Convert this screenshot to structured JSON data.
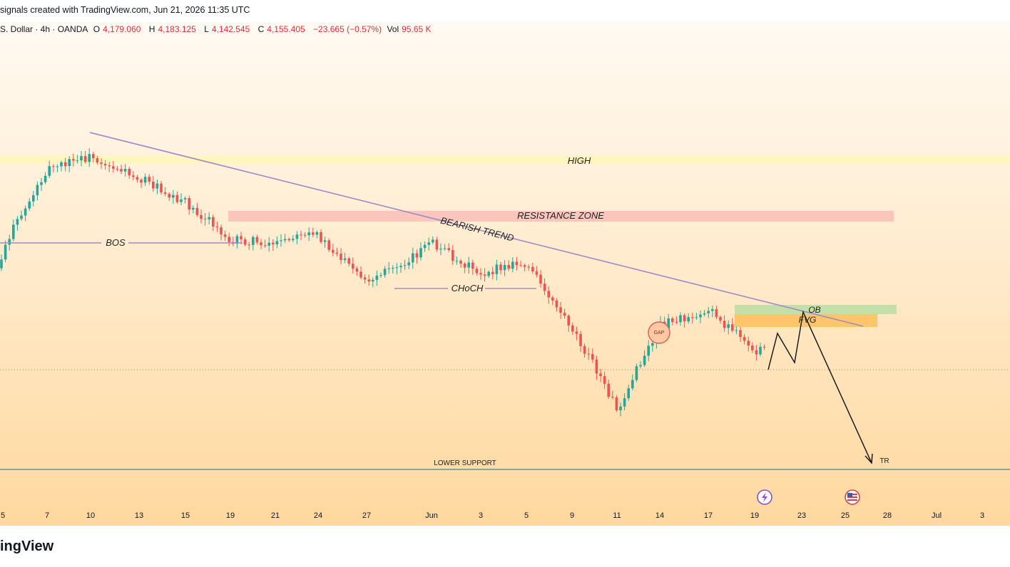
{
  "header": {
    "caption": "signals created with TradingView.com, Jun 21, 2026 11:35 UTC"
  },
  "legend": {
    "symbol": "S. Dollar · 4h · OANDA",
    "open_label": "O",
    "open": "4,179.060",
    "high_label": "H",
    "high": "4,183.125",
    "low_label": "L",
    "low": "4,142.545",
    "close_label": "C",
    "close": "4,155.405",
    "change": "−23.665 (−0.57%)",
    "vol_label": "Vol",
    "vol": "95.65 K"
  },
  "annotations": {
    "high": "HIGH",
    "resistance": "RESISTANCE ZONE",
    "bearish": "BEARISH TREND",
    "bos": "BOS",
    "choch": "CHoCH",
    "gap": "GAP",
    "ob": "OB",
    "fvg": "FVG",
    "lower_support": "LOWER SUPPORT",
    "tr": "TR"
  },
  "colors": {
    "up": "#26a69a",
    "down": "#ef5350",
    "trendline": "#9c8ac9",
    "resistance": "#f8b4b0",
    "high_band": "#fff6b8",
    "ob": "#c5dfa8",
    "fvg": "#ffc56b",
    "support": "#5c9c8c"
  },
  "footer": {
    "brand": "ingView"
  },
  "chart_data": {
    "type": "candlestick",
    "x_tick_labels": [
      "5",
      "7",
      "10",
      "13",
      "15",
      "19",
      "21",
      "24",
      "27",
      "Jun",
      "3",
      "5",
      "9",
      "11",
      "14",
      "17",
      "19",
      "23",
      "25",
      "28",
      "Jul",
      "3"
    ],
    "close_series": [
      {
        "x": "5",
        "y": 4220
      },
      {
        "x": "7",
        "y": 4315
      },
      {
        "x": "10",
        "y": 4330
      },
      {
        "x": "13",
        "y": 4305
      },
      {
        "x": "15",
        "y": 4275
      },
      {
        "x": "19",
        "y": 4230
      },
      {
        "x": "21",
        "y": 4225
      },
      {
        "x": "24",
        "y": 4235
      },
      {
        "x": "27",
        "y": 4175
      },
      {
        "x": "Jun",
        "y": 4225
      },
      {
        "x": "3",
        "y": 4190
      },
      {
        "x": "5",
        "y": 4200
      },
      {
        "x": "9",
        "y": 4125
      },
      {
        "x": "11",
        "y": 4025
      },
      {
        "x": "14",
        "y": 4125
      },
      {
        "x": "17",
        "y": 4145
      },
      {
        "x": "19",
        "y": 4095
      }
    ],
    "projection": [
      "up to FVG / OB zone",
      "drop toward TR below LOWER SUPPORT"
    ],
    "last_close": 4155.405
  }
}
